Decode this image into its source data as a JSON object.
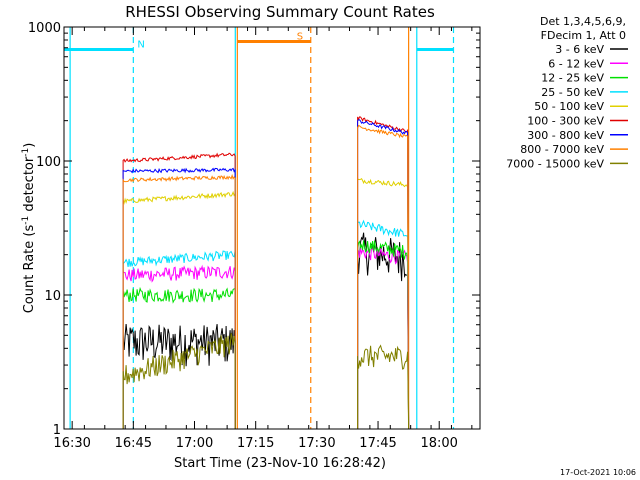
{
  "chart_data": {
    "type": "line",
    "title": "RHESSI Observing Summary Count Rates",
    "xlabel": "Start Time (23-Nov-10 16:28:42)",
    "ylabel_main": "Count Rate (s",
    "ylabel_sup1": "-1",
    "ylabel_mid": " detector",
    "ylabel_sup2": "-1",
    "ylabel_end": ")",
    "yscale": "log",
    "ylim": [
      1,
      1000
    ],
    "xlim_min": [
      988,
      1090
    ],
    "x_ticks": [
      {
        "min": 990,
        "label": "16:30"
      },
      {
        "min": 1005,
        "label": "16:45"
      },
      {
        "min": 1020,
        "label": "17:00"
      },
      {
        "min": 1035,
        "label": "17:15"
      },
      {
        "min": 1050,
        "label": "17:30"
      },
      {
        "min": 1065,
        "label": "17:45"
      },
      {
        "min": 1080,
        "label": "18:00"
      }
    ],
    "y_ticks": [
      {
        "value": 1,
        "label": "1"
      },
      {
        "value": 10,
        "label": "10"
      },
      {
        "value": 100,
        "label": "100"
      },
      {
        "value": 1000,
        "label": "1000"
      }
    ],
    "legend": {
      "header1": "Det 1,3,4,5,6,9,",
      "header2": "FDecim 1, Att 0",
      "entries": [
        {
          "label": "3 - 6 keV",
          "color": "#000000"
        },
        {
          "label": "6 - 12 keV",
          "color": "#ff00ff"
        },
        {
          "label": "12 - 25 keV",
          "color": "#00e000"
        },
        {
          "label": "25 - 50 keV",
          "color": "#00e0ff"
        },
        {
          "label": "50 - 100 keV",
          "color": "#e0d000"
        },
        {
          "label": "100 - 300 keV",
          "color": "#e00000"
        },
        {
          "label": "300 - 800 keV",
          "color": "#0000ff"
        },
        {
          "label": "800 - 7000 keV",
          "color": "#ff8000"
        },
        {
          "label": "7000 - 15000 keV",
          "color": "#808000"
        }
      ]
    },
    "segments": [
      {
        "start_min": 1002.5,
        "end_min": 1030
      },
      {
        "start_min": 1060,
        "end_min": 1072.5
      }
    ],
    "series": [
      {
        "name": "3 - 6 keV",
        "color": "#000000",
        "values": [
          [
            1002.5,
            4.5,
            1030,
            4.5
          ],
          [
            1060,
            22,
            1072.5,
            19
          ]
        ],
        "noise": 0.35
      },
      {
        "name": "6 - 12 keV",
        "color": "#ff00ff",
        "values": [
          [
            1002.5,
            14,
            1030,
            15
          ],
          [
            1060,
            21,
            1072.5,
            19
          ]
        ],
        "noise": 0.12
      },
      {
        "name": "12 - 25 keV",
        "color": "#00e000",
        "values": [
          [
            1002.5,
            10,
            1030,
            10
          ],
          [
            1060,
            24,
            1072.5,
            21
          ]
        ],
        "noise": 0.12
      },
      {
        "name": "25 - 50 keV",
        "color": "#00e0ff",
        "values": [
          [
            1002.5,
            17.5,
            1030,
            20
          ],
          [
            1060,
            34,
            1072.5,
            28
          ]
        ],
        "noise": 0.08
      },
      {
        "name": "50 - 100 keV",
        "color": "#e0d000",
        "values": [
          [
            1002.5,
            50,
            1030,
            57
          ],
          [
            1060,
            72,
            1072.5,
            66
          ]
        ],
        "noise": 0.04
      },
      {
        "name": "100 - 300 keV",
        "color": "#e00000",
        "values": [
          [
            1002.5,
            100,
            1030,
            112
          ],
          [
            1060,
            210,
            1072.5,
            165
          ]
        ],
        "noise": 0.03
      },
      {
        "name": "300 - 800 keV",
        "color": "#0000ff",
        "values": [
          [
            1002.5,
            84,
            1030,
            86
          ],
          [
            1060,
            200,
            1072.5,
            160
          ]
        ],
        "noise": 0.03
      },
      {
        "name": "800 - 7000 keV",
        "color": "#ff8000",
        "values": [
          [
            1002.5,
            72,
            1030,
            76
          ],
          [
            1060,
            180,
            1072.5,
            150
          ]
        ],
        "noise": 0.03
      },
      {
        "name": "7000 - 15000 keV",
        "color": "#808000",
        "values": [
          [
            1002.5,
            2.5,
            1030,
            4.5
          ],
          [
            1060,
            3.5,
            1072.5,
            3.5
          ]
        ],
        "noise": 0.2
      }
    ],
    "flags": [
      {
        "label": "N",
        "color": "#00e0ff",
        "start_min": 988,
        "end_min": 1005,
        "level": 680
      },
      {
        "label": "S",
        "color": "#ff8000",
        "start_min": 1030.5,
        "end_min": 1048.5,
        "level": 780
      },
      {
        "label": "",
        "color": "#00e0ff",
        "start_min": 1074.5,
        "end_min": 1083.5,
        "level": 680
      }
    ],
    "vlines": [
      {
        "min": 989.5,
        "color": "#00e0ff",
        "style": "solid"
      },
      {
        "min": 1005,
        "color": "#00e0ff",
        "style": "dashed"
      },
      {
        "min": 1030,
        "color": "#00e0ff",
        "style": "solid"
      },
      {
        "min": 1030.5,
        "color": "#ff8000",
        "style": "solid"
      },
      {
        "min": 1048.5,
        "color": "#ff8000",
        "style": "dashed"
      },
      {
        "min": 1072.5,
        "color": "#ff8000",
        "style": "solid"
      },
      {
        "min": 1074.5,
        "color": "#00e0ff",
        "style": "solid"
      },
      {
        "min": 1083.5,
        "color": "#00e0ff",
        "style": "dashed"
      }
    ],
    "timestamp": "17-Oct-2021 10:06"
  }
}
